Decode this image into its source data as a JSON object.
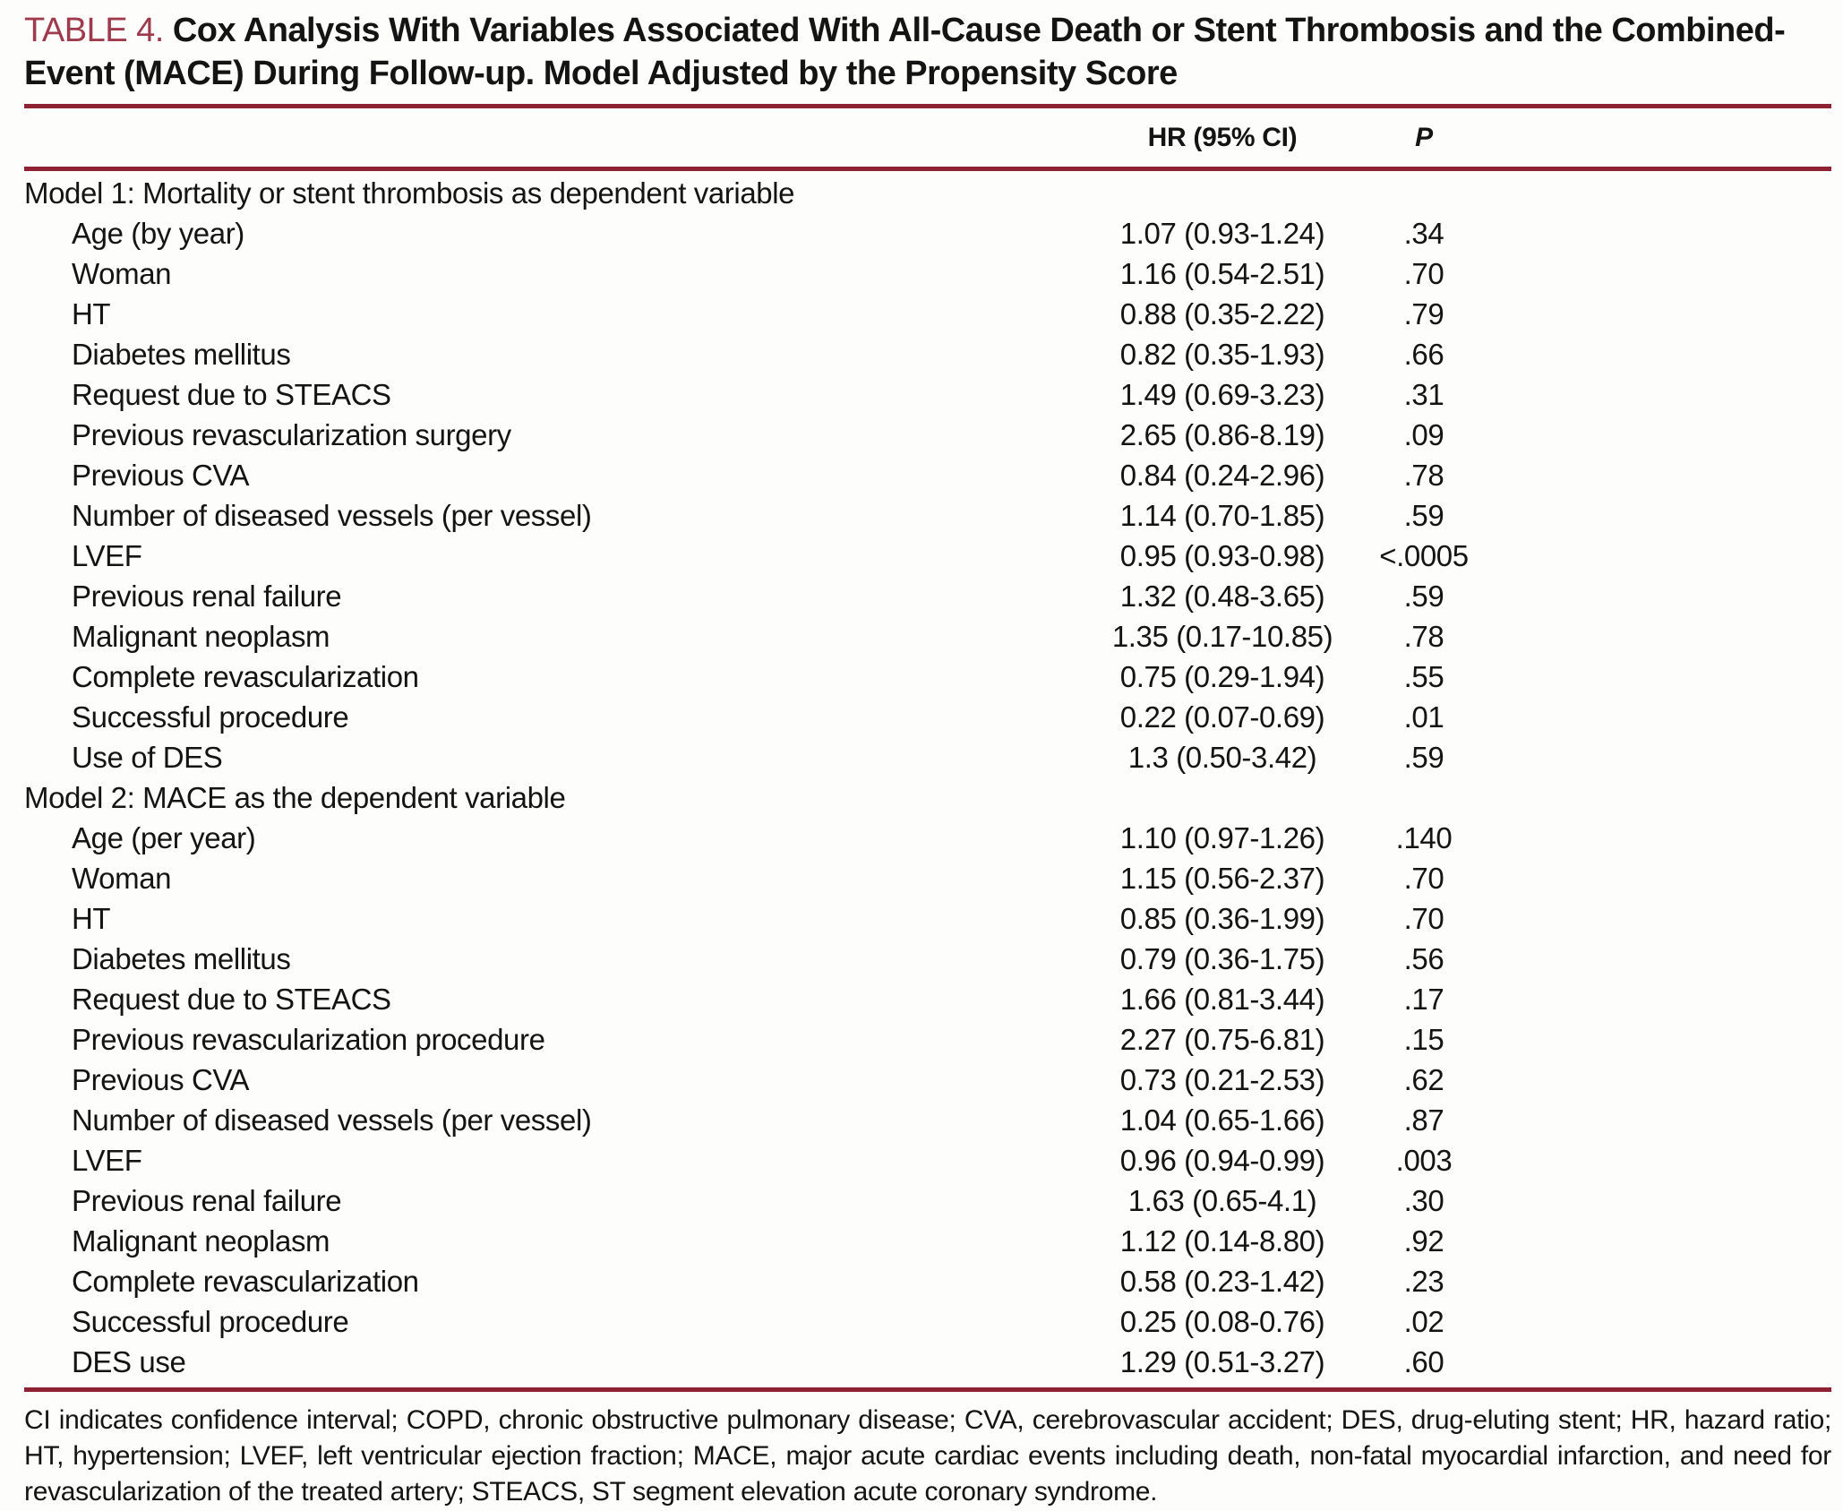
{
  "title": {
    "label": "TABLE 4.",
    "line1": "Cox Analysis With Variables Associated With All-Cause Death or Stent Thrombosis and the Combined-",
    "line2": "Event (MACE) During Follow-up. Model Adjusted by the Propensity Score"
  },
  "columns": {
    "hr": "HR (95% CI)",
    "p": "P"
  },
  "sections": [
    {
      "header": "Model 1: Mortality or stent thrombosis as dependent variable",
      "rows": [
        {
          "label": "Age (by year)",
          "hr": "1.07 (0.93-1.24)",
          "p": ".34"
        },
        {
          "label": "Woman",
          "hr": "1.16 (0.54-2.51)",
          "p": ".70"
        },
        {
          "label": "HT",
          "hr": "0.88 (0.35-2.22)",
          "p": ".79"
        },
        {
          "label": "Diabetes mellitus",
          "hr": "0.82 (0.35-1.93)",
          "p": ".66"
        },
        {
          "label": "Request due to STEACS",
          "hr": "1.49 (0.69-3.23)",
          "p": ".31"
        },
        {
          "label": "Previous revascularization surgery",
          "hr": "2.65 (0.86-8.19)",
          "p": ".09"
        },
        {
          "label": "Previous CVA",
          "hr": "0.84 (0.24-2.96)",
          "p": ".78"
        },
        {
          "label": "Number of diseased vessels (per vessel)",
          "hr": "1.14 (0.70-1.85)",
          "p": ".59"
        },
        {
          "label": "LVEF",
          "hr": "0.95 (0.93-0.98)",
          "p": "<.0005"
        },
        {
          "label": "Previous renal failure",
          "hr": "1.32 (0.48-3.65)",
          "p": ".59"
        },
        {
          "label": "Malignant neoplasm",
          "hr": "1.35 (0.17-10.85)",
          "p": ".78"
        },
        {
          "label": "Complete revascularization",
          "hr": "0.75 (0.29-1.94)",
          "p": ".55"
        },
        {
          "label": "Successful procedure",
          "hr": "0.22 (0.07-0.69)",
          "p": ".01"
        },
        {
          "label": "Use of DES",
          "hr": "1.3 (0.50-3.42)",
          "p": ".59"
        }
      ]
    },
    {
      "header": "Model 2: MACE as the dependent variable",
      "rows": [
        {
          "label": "Age (per year)",
          "hr": "1.10 (0.97-1.26)",
          "p": ".140"
        },
        {
          "label": "Woman",
          "hr": "1.15 (0.56-2.37)",
          "p": ".70"
        },
        {
          "label": "HT",
          "hr": "0.85 (0.36-1.99)",
          "p": ".70"
        },
        {
          "label": "Diabetes mellitus",
          "hr": "0.79 (0.36-1.75)",
          "p": ".56"
        },
        {
          "label": "Request due to STEACS",
          "hr": "1.66 (0.81-3.44)",
          "p": ".17"
        },
        {
          "label": "Previous revascularization procedure",
          "hr": "2.27 (0.75-6.81)",
          "p": ".15"
        },
        {
          "label": "Previous CVA",
          "hr": "0.73 (0.21-2.53)",
          "p": ".62"
        },
        {
          "label": "Number of diseased vessels (per vessel)",
          "hr": "1.04 (0.65-1.66)",
          "p": ".87"
        },
        {
          "label": "LVEF",
          "hr": "0.96 (0.94-0.99)",
          "p": ".003"
        },
        {
          "label": "Previous renal failure",
          "hr": "1.63 (0.65-4.1)",
          "p": ".30"
        },
        {
          "label": "Malignant neoplasm",
          "hr": "1.12 (0.14-8.80)",
          "p": ".92"
        },
        {
          "label": "Complete revascularization",
          "hr": "0.58 (0.23-1.42)",
          "p": ".23"
        },
        {
          "label": "Successful procedure",
          "hr": "0.25 (0.08-0.76)",
          "p": ".02"
        },
        {
          "label": "DES use",
          "hr": "1.29 (0.51-3.27)",
          "p": ".60"
        }
      ]
    }
  ],
  "footnote": "CI indicates confidence interval; COPD, chronic obstructive pulmonary disease; CVA, cerebrovascular accident; DES, drug-eluting stent; HR, hazard ratio; HT, hypertension; LVEF, left ventricular ejection fraction; MACE, major acute cardiac events including death, non-fatal myocardial infarction, and need for revascularization of the treated artery; STEACS, ST segment elevation acute coronary syndrome.",
  "colors": {
    "rule": "#8e2233",
    "table_label": "#9e3a4c",
    "text": "#141414",
    "background": "#fdfdfc"
  }
}
